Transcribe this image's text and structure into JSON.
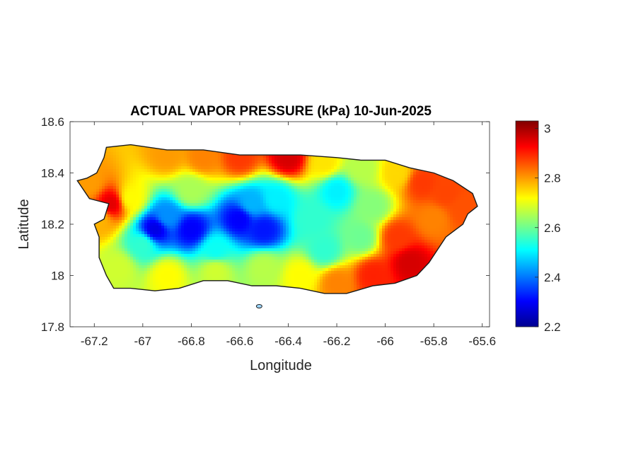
{
  "chart_data": {
    "type": "heatmap",
    "title": "ACTUAL VAPOR PRESSURE (kPa) 10-Jun-2025",
    "xlabel": "Longitude",
    "ylabel": "Latitude",
    "xlim": [
      -67.3,
      -65.57
    ],
    "ylim": [
      17.8,
      18.6
    ],
    "x_ticks": [
      {
        "value": -67.2,
        "label": "-67.2"
      },
      {
        "value": -67.0,
        "label": "-67"
      },
      {
        "value": -66.8,
        "label": "-66.8"
      },
      {
        "value": -66.6,
        "label": "-66.6"
      },
      {
        "value": -66.4,
        "label": "-66.4"
      },
      {
        "value": -66.2,
        "label": "-66.2"
      },
      {
        "value": -66.0,
        "label": "-66"
      },
      {
        "value": -65.8,
        "label": "-65.8"
      },
      {
        "value": -65.6,
        "label": "-65.6"
      }
    ],
    "y_ticks": [
      {
        "value": 17.8,
        "label": "17.8"
      },
      {
        "value": 18.0,
        "label": "18"
      },
      {
        "value": 18.2,
        "label": "18.2"
      },
      {
        "value": 18.4,
        "label": "18.4"
      },
      {
        "value": 18.6,
        "label": "18.6"
      }
    ],
    "colorbar": {
      "colormap": "jet",
      "min": 2.2,
      "max": 3.03,
      "ticks": [
        {
          "value": 2.2,
          "label": "2.2"
        },
        {
          "value": 2.4,
          "label": "2.4"
        },
        {
          "value": 2.6,
          "label": "2.6"
        },
        {
          "value": 2.8,
          "label": "2.8"
        },
        {
          "value": 3.0,
          "label": "3"
        }
      ]
    },
    "region_outline": [
      [
        -67.27,
        18.37
      ],
      [
        -67.23,
        18.38
      ],
      [
        -67.19,
        18.4
      ],
      [
        -67.16,
        18.46
      ],
      [
        -67.15,
        18.5
      ],
      [
        -67.05,
        18.51
      ],
      [
        -66.9,
        18.49
      ],
      [
        -66.75,
        18.49
      ],
      [
        -66.6,
        18.47
      ],
      [
        -66.45,
        18.47
      ],
      [
        -66.35,
        18.47
      ],
      [
        -66.2,
        18.46
      ],
      [
        -66.1,
        18.45
      ],
      [
        -66.0,
        18.45
      ],
      [
        -65.9,
        18.42
      ],
      [
        -65.8,
        18.4
      ],
      [
        -65.72,
        18.37
      ],
      [
        -65.64,
        18.32
      ],
      [
        -65.62,
        18.27
      ],
      [
        -65.66,
        18.24
      ],
      [
        -65.68,
        18.2
      ],
      [
        -65.75,
        18.15
      ],
      [
        -65.82,
        18.05
      ],
      [
        -65.87,
        18.0
      ],
      [
        -65.96,
        17.97
      ],
      [
        -66.05,
        17.96
      ],
      [
        -66.16,
        17.93
      ],
      [
        -66.25,
        17.93
      ],
      [
        -66.35,
        17.95
      ],
      [
        -66.45,
        17.96
      ],
      [
        -66.55,
        17.96
      ],
      [
        -66.65,
        17.98
      ],
      [
        -66.75,
        17.98
      ],
      [
        -66.85,
        17.95
      ],
      [
        -66.95,
        17.94
      ],
      [
        -67.05,
        17.95
      ],
      [
        -67.12,
        17.95
      ],
      [
        -67.15,
        18.0
      ],
      [
        -67.18,
        18.07
      ],
      [
        -67.18,
        18.15
      ],
      [
        -67.2,
        18.2
      ],
      [
        -67.16,
        18.22
      ],
      [
        -67.14,
        18.28
      ],
      [
        -67.22,
        18.3
      ],
      [
        -67.27,
        18.37
      ]
    ],
    "small_islands": [
      {
        "lon": -66.52,
        "lat": 17.88
      }
    ],
    "field_centers": [
      {
        "lon": -67.05,
        "lat": 18.3,
        "value": 2.72
      },
      {
        "lon": -66.9,
        "lat": 18.47,
        "value": 2.8
      },
      {
        "lon": -66.75,
        "lat": 18.46,
        "value": 2.82
      },
      {
        "lon": -66.6,
        "lat": 18.46,
        "value": 2.88
      },
      {
        "lon": -66.4,
        "lat": 18.46,
        "value": 2.96
      },
      {
        "lon": -66.25,
        "lat": 18.44,
        "value": 2.74
      },
      {
        "lon": -66.1,
        "lat": 18.42,
        "value": 2.66
      },
      {
        "lon": -65.95,
        "lat": 18.4,
        "value": 2.75
      },
      {
        "lon": -65.85,
        "lat": 18.36,
        "value": 2.88
      },
      {
        "lon": -65.75,
        "lat": 18.32,
        "value": 2.87
      },
      {
        "lon": -65.68,
        "lat": 18.26,
        "value": 2.86
      },
      {
        "lon": -65.8,
        "lat": 18.22,
        "value": 2.82
      },
      {
        "lon": -65.95,
        "lat": 18.15,
        "value": 2.88
      },
      {
        "lon": -66.05,
        "lat": 18.27,
        "value": 2.62
      },
      {
        "lon": -65.9,
        "lat": 18.05,
        "value": 2.96
      },
      {
        "lon": -66.05,
        "lat": 18.0,
        "value": 2.9
      },
      {
        "lon": -66.2,
        "lat": 17.97,
        "value": 2.82
      },
      {
        "lon": -66.35,
        "lat": 18.0,
        "value": 2.72
      },
      {
        "lon": -66.5,
        "lat": 18.03,
        "value": 2.66
      },
      {
        "lon": -66.7,
        "lat": 18.02,
        "value": 2.68
      },
      {
        "lon": -66.9,
        "lat": 18.0,
        "value": 2.72
      },
      {
        "lon": -67.1,
        "lat": 18.03,
        "value": 2.68
      },
      {
        "lon": -67.18,
        "lat": 18.22,
        "value": 2.78
      },
      {
        "lon": -67.22,
        "lat": 18.36,
        "value": 2.8
      },
      {
        "lon": -67.13,
        "lat": 18.28,
        "value": 2.95
      },
      {
        "lon": -66.9,
        "lat": 18.23,
        "value": 2.42
      },
      {
        "lon": -66.95,
        "lat": 18.18,
        "value": 2.28
      },
      {
        "lon": -66.8,
        "lat": 18.18,
        "value": 2.3
      },
      {
        "lon": -66.6,
        "lat": 18.22,
        "value": 2.3
      },
      {
        "lon": -66.5,
        "lat": 18.18,
        "value": 2.32
      },
      {
        "lon": -66.55,
        "lat": 18.28,
        "value": 2.45
      },
      {
        "lon": -66.45,
        "lat": 18.3,
        "value": 2.5
      },
      {
        "lon": -66.3,
        "lat": 18.22,
        "value": 2.55
      },
      {
        "lon": -66.25,
        "lat": 18.1,
        "value": 2.55
      },
      {
        "lon": -66.7,
        "lat": 18.1,
        "value": 2.52
      },
      {
        "lon": -67.0,
        "lat": 18.12,
        "value": 2.55
      },
      {
        "lon": -66.8,
        "lat": 18.33,
        "value": 2.65
      },
      {
        "lon": -66.2,
        "lat": 18.33,
        "value": 2.5
      },
      {
        "lon": -66.1,
        "lat": 18.15,
        "value": 2.6
      }
    ]
  }
}
